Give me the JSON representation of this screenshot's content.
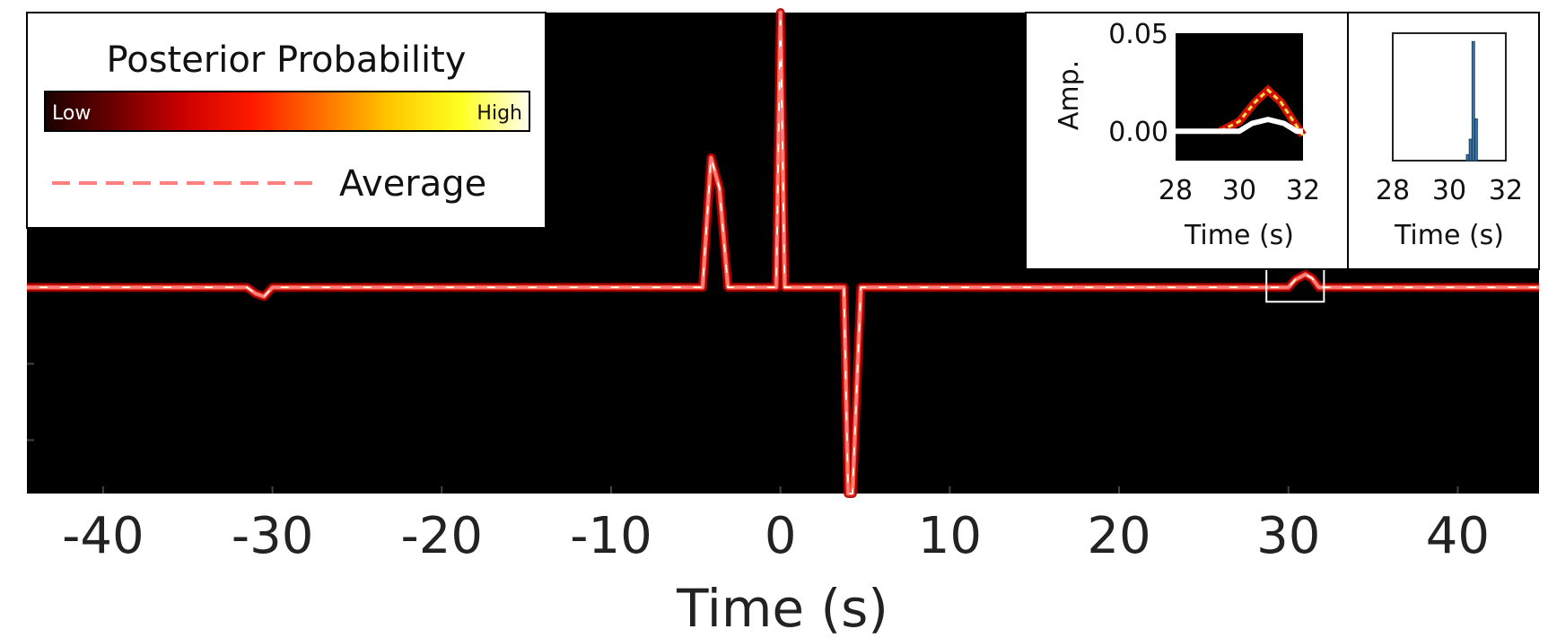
{
  "chart_data": [
    {
      "type": "line",
      "chart": "main",
      "xlabel": "Time (s)",
      "ylabel": "",
      "xlim": [
        -44.5,
        44.8
      ],
      "ylim": [
        -0.27,
        0.36
      ],
      "xticks": [
        -40,
        -30,
        -20,
        -10,
        0,
        10,
        20,
        30,
        40
      ],
      "xtick_labels": [
        "-40",
        "-30",
        "-20",
        "-10",
        "0",
        "10",
        "20",
        "30",
        "40"
      ],
      "background": "posterior heatmap (black = low probability)",
      "series": [
        {
          "name": "Average",
          "color": "#ff8080",
          "style": "dashed",
          "x": [
            -44.5,
            -31.5,
            -31.0,
            -30.5,
            -30.0,
            -4.6,
            -4.1,
            -3.6,
            -3.1,
            -0.25,
            0.0,
            0.25,
            3.75,
            4.0,
            4.25,
            4.75,
            30.0,
            30.4,
            31.0,
            31.4,
            31.8,
            44.8
          ],
          "y": [
            0.0,
            0.0,
            -0.008,
            -0.012,
            0.0,
            0.0,
            0.17,
            0.13,
            0.0,
            0.0,
            0.36,
            0.0,
            0.0,
            -0.27,
            -0.27,
            0.0,
            0.0,
            0.01,
            0.017,
            0.012,
            0.0,
            0.0
          ]
        }
      ],
      "grid": false,
      "legend": {
        "position": "top-left",
        "title": "Posterior Probability",
        "colorbar_low": "Low",
        "colorbar_high": "High",
        "colorbar_colors": [
          "#1a0000",
          "#6b0000",
          "#cc0000",
          "#ff1a00",
          "#ff7000",
          "#ffc800",
          "#ffff20",
          "#fffff0"
        ],
        "entries": [
          {
            "label": "Average",
            "color": "#ff8080",
            "style": "dashed"
          }
        ]
      },
      "highlight_box": {
        "xlim": [
          28.7,
          32.1
        ],
        "color": "#ffffff"
      }
    },
    {
      "type": "heatmap",
      "chart": "inset-zoom",
      "xlabel": "Time (s)",
      "ylabel": "Amp.",
      "xlim": [
        28,
        32
      ],
      "ylim": [
        -0.015,
        0.05
      ],
      "xticks": [
        28,
        30,
        32
      ],
      "xtick_labels": [
        "28",
        "30",
        "32"
      ],
      "yticks": [
        0.0,
        0.05
      ],
      "ytick_labels": [
        "0.00",
        "0.05"
      ],
      "series": [
        {
          "name": "posterior mean",
          "color": "#ffffff",
          "x": [
            28.0,
            30.0,
            30.4,
            30.9,
            31.4,
            31.8,
            32.0
          ],
          "y": [
            0.0,
            0.0,
            0.004,
            0.006,
            0.004,
            0.0,
            0.0
          ]
        },
        {
          "name": "posterior ridge",
          "color": "#ffe050",
          "x": [
            29.4,
            30.0,
            30.5,
            30.9,
            31.3,
            31.7,
            32.0
          ],
          "y": [
            0.0,
            0.005,
            0.015,
            0.021,
            0.015,
            0.005,
            -0.002
          ]
        }
      ]
    },
    {
      "type": "bar",
      "chart": "inset-histogram",
      "xlabel": "Time (s)",
      "ylabel": "",
      "xlim": [
        28,
        32
      ],
      "xticks": [
        28,
        30,
        32
      ],
      "xtick_labels": [
        "28",
        "30",
        "32"
      ],
      "bar_color": "#3f78a8",
      "x": [
        30.65,
        30.75,
        30.85,
        30.95
      ],
      "values": [
        0.05,
        0.18,
        1.0,
        0.35
      ],
      "ylim": [
        0,
        1.07
      ]
    }
  ]
}
